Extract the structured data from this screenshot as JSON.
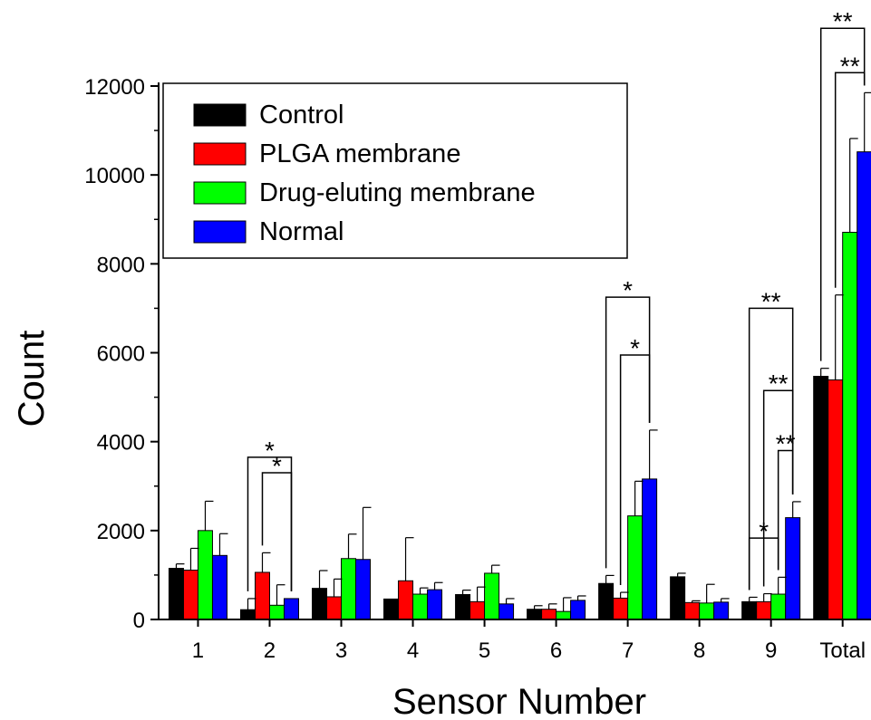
{
  "chart_data": {
    "type": "bar",
    "title": "",
    "xlabel": "Sensor Number",
    "ylabel": "Count",
    "ylim": [
      0,
      12000
    ],
    "yticks": [
      0,
      2000,
      4000,
      6000,
      8000,
      10000,
      12000
    ],
    "ytick_labels": [
      "0",
      "2000",
      "4000",
      "6000",
      "8000",
      "10000",
      "12000"
    ],
    "categories": [
      "1",
      "2",
      "3",
      "4",
      "5",
      "6",
      "7",
      "8",
      "9",
      "Total"
    ],
    "series": [
      {
        "name": "Control",
        "color": "#000000",
        "values": [
          1150,
          220,
          700,
          460,
          560,
          230,
          810,
          960,
          400,
          5470
        ],
        "errors": [
          100,
          250,
          400,
          0,
          100,
          80,
          180,
          80,
          100,
          180
        ]
      },
      {
        "name": "PLGA membrane",
        "color": "#ff0000",
        "values": [
          1110,
          1060,
          510,
          870,
          400,
          230,
          480,
          380,
          400,
          5390
        ],
        "errors": [
          490,
          440,
          400,
          970,
          330,
          120,
          130,
          40,
          180,
          1910
        ]
      },
      {
        "name": "Drug-eluting membrane",
        "color": "#00ff00",
        "values": [
          2000,
          320,
          1370,
          570,
          1040,
          180,
          2330,
          370,
          570,
          8710
        ],
        "errors": [
          660,
          460,
          550,
          140,
          180,
          310,
          780,
          420,
          380,
          2110
        ]
      },
      {
        "name": "Normal",
        "color": "#0000ff",
        "values": [
          1440,
          470,
          1350,
          670,
          350,
          430,
          3160,
          390,
          2290,
          10520
        ],
        "errors": [
          490,
          0,
          1170,
          160,
          120,
          100,
          1100,
          80,
          360,
          1330
        ]
      }
    ],
    "legend": {
      "position": "top-left",
      "entries": [
        "Control",
        "PLGA membrane",
        "Drug-eluting membrane",
        "Normal"
      ]
    },
    "significance": [
      {
        "category": "2",
        "from_series": 0,
        "to_series": 3,
        "label": "*",
        "level": 3650
      },
      {
        "category": "2",
        "from_series": 1,
        "to_series": 3,
        "label": "*",
        "level": 3300
      },
      {
        "category": "7",
        "from_series": 0,
        "to_series": 3,
        "label": "*",
        "level": 7250
      },
      {
        "category": "7",
        "from_series": 1,
        "to_series": 3,
        "label": "*",
        "level": 5950
      },
      {
        "category": "9",
        "from_series": 0,
        "to_series": 3,
        "label": "**",
        "level": 7000
      },
      {
        "category": "9",
        "from_series": 1,
        "to_series": 3,
        "label": "**",
        "level": 5150
      },
      {
        "category": "9",
        "from_series": 2,
        "to_series": 3,
        "label": "**",
        "level": 3800
      },
      {
        "category": "9",
        "from_series": 0,
        "to_series": 2,
        "label": "*",
        "level": 1830
      },
      {
        "category": "Total",
        "from_series": 0,
        "to_series": 3,
        "label": "**",
        "level": 13300
      },
      {
        "category": "Total",
        "from_series": 1,
        "to_series": 3,
        "label": "**",
        "level": 12300
      }
    ],
    "grid": false
  }
}
